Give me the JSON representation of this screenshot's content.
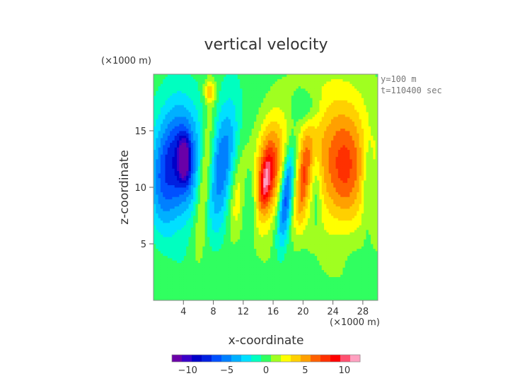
{
  "chart_data": {
    "type": "heatmap",
    "title": "vertical velocity",
    "xlabel": "x-coordinate",
    "ylabel": "z-coordinate",
    "x_unit": "(×1000 m)",
    "y_unit": "(×1000 m)",
    "annotations": [
      "y=100 m",
      "t=110400 sec"
    ],
    "xlim": [
      0,
      30
    ],
    "ylim": [
      0,
      20
    ],
    "x_ticks": [
      "4",
      "8",
      "12",
      "16",
      "20",
      "24",
      "28"
    ],
    "y_ticks": [
      "5",
      "10",
      "15"
    ],
    "colorbar": {
      "range": [
        -12,
        12
      ],
      "ticks": [
        "−10",
        "−5",
        "0",
        "5",
        "10"
      ],
      "colors": [
        "#6a00a8",
        "#3a00c8",
        "#0000c8",
        "#0020e0",
        "#0050ff",
        "#0080ff",
        "#00b0ff",
        "#00e0ff",
        "#00ffc0",
        "#30ff60",
        "#a0ff20",
        "#ffff00",
        "#ffd000",
        "#ffa000",
        "#ff6000",
        "#ff3000",
        "#ff0000",
        "#ff5070",
        "#ffa0c0"
      ]
    },
    "features": [
      {
        "x": 4.1,
        "z": 12.5,
        "peak": -13.5,
        "note": "strong downdraft core"
      },
      {
        "x": 15.0,
        "z": 10.5,
        "peak": 11.5,
        "note": "updraft core"
      },
      {
        "x": 25.5,
        "z": 11.5,
        "peak": 8.5,
        "note": "broad updraft"
      },
      {
        "x": 18.0,
        "z": 10.0,
        "peak": -8.0,
        "note": "narrow downdraft"
      }
    ]
  }
}
